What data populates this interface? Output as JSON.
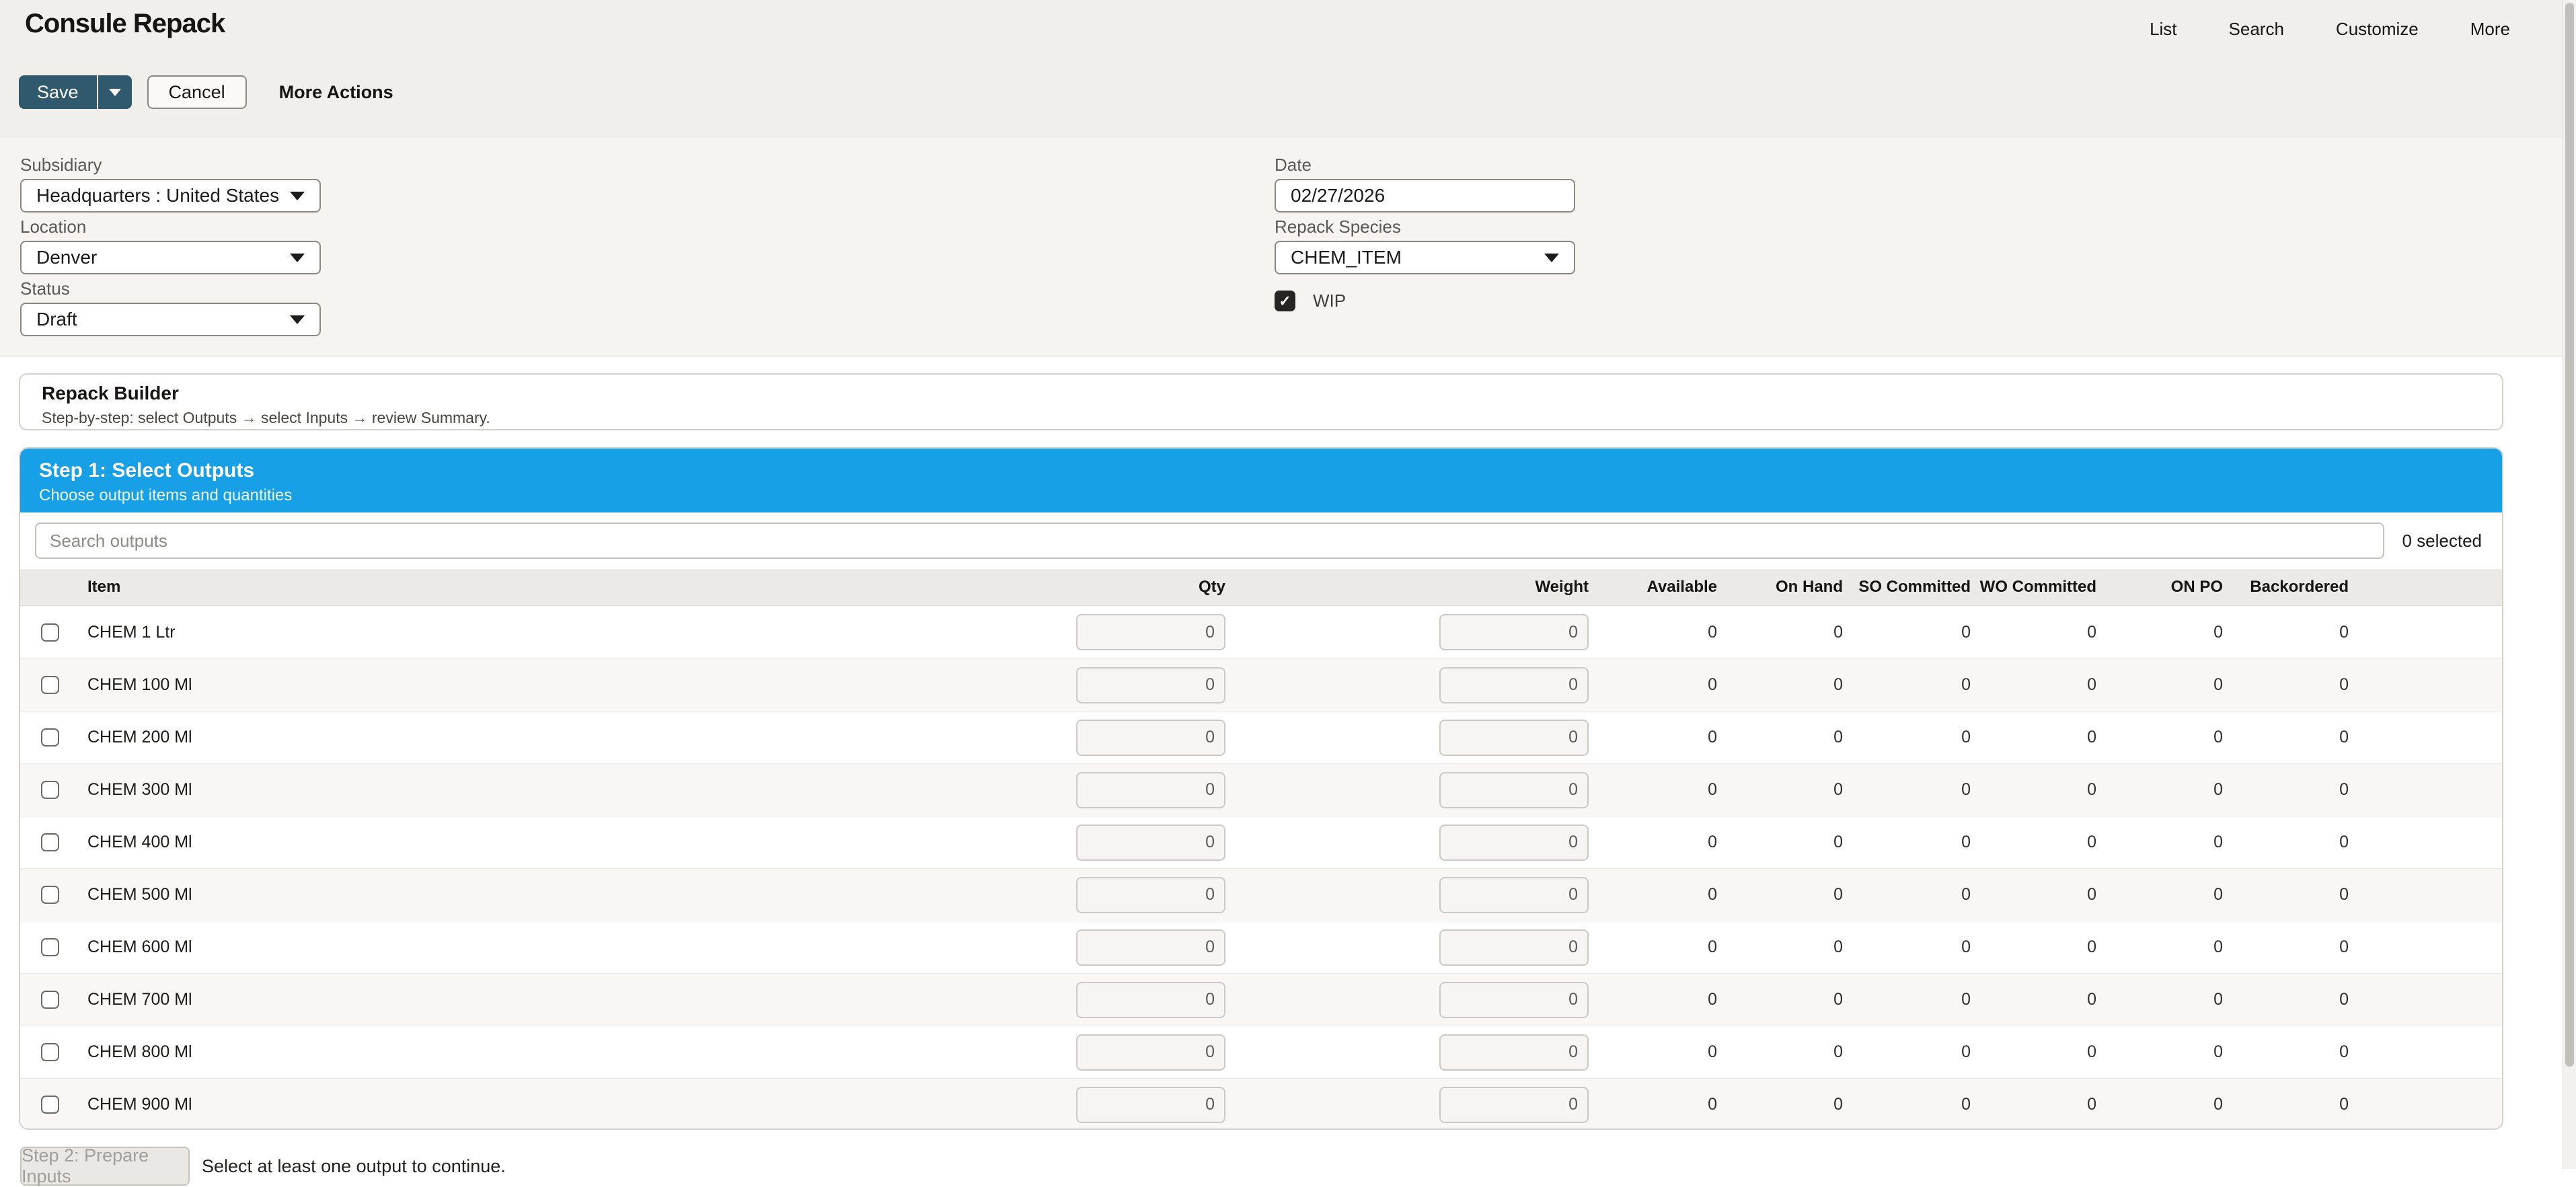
{
  "header": {
    "title": "Consule Repack",
    "nav": [
      {
        "label": "List"
      },
      {
        "label": "Search"
      },
      {
        "label": "Customize"
      },
      {
        "label": "More"
      }
    ]
  },
  "toolbar": {
    "save_label": "Save",
    "cancel_label": "Cancel",
    "more_actions_label": "More Actions"
  },
  "form": {
    "subsidiary": {
      "label": "Subsidiary",
      "value": "Headquarters : United States"
    },
    "location": {
      "label": "Location",
      "value": "Denver"
    },
    "status": {
      "label": "Status",
      "value": "Draft"
    },
    "date": {
      "label": "Date",
      "value": "02/27/2026"
    },
    "repack_species": {
      "label": "Repack Species",
      "value": "CHEM_ITEM"
    },
    "wip": {
      "label": "WIP",
      "checked": true,
      "checkmark": "✓"
    }
  },
  "builder": {
    "title": "Repack Builder",
    "subtitle": "Step-by-step: select Outputs → select Inputs → review Summary."
  },
  "step1": {
    "title": "Step 1: Select Outputs",
    "subtitle": "Choose output items and quantities",
    "search_placeholder": "Search outputs",
    "selected_count": "0 selected",
    "columns": [
      "Item",
      "Qty",
      "Weight",
      "Available",
      "On Hand",
      "SO Committed",
      "WO Committed",
      "ON PO",
      "Backordered"
    ],
    "rows": [
      {
        "item": "CHEM 1 Ltr",
        "qty": "0",
        "weight": "0",
        "available": "0",
        "on_hand": "0",
        "so_committed": "0",
        "wo_committed": "0",
        "on_po": "0",
        "backordered": "0"
      },
      {
        "item": "CHEM 100 Ml",
        "qty": "0",
        "weight": "0",
        "available": "0",
        "on_hand": "0",
        "so_committed": "0",
        "wo_committed": "0",
        "on_po": "0",
        "backordered": "0"
      },
      {
        "item": "CHEM 200 Ml",
        "qty": "0",
        "weight": "0",
        "available": "0",
        "on_hand": "0",
        "so_committed": "0",
        "wo_committed": "0",
        "on_po": "0",
        "backordered": "0"
      },
      {
        "item": "CHEM 300 Ml",
        "qty": "0",
        "weight": "0",
        "available": "0",
        "on_hand": "0",
        "so_committed": "0",
        "wo_committed": "0",
        "on_po": "0",
        "backordered": "0"
      },
      {
        "item": "CHEM 400 Ml",
        "qty": "0",
        "weight": "0",
        "available": "0",
        "on_hand": "0",
        "so_committed": "0",
        "wo_committed": "0",
        "on_po": "0",
        "backordered": "0"
      },
      {
        "item": "CHEM 500 Ml",
        "qty": "0",
        "weight": "0",
        "available": "0",
        "on_hand": "0",
        "so_committed": "0",
        "wo_committed": "0",
        "on_po": "0",
        "backordered": "0"
      },
      {
        "item": "CHEM 600 Ml",
        "qty": "0",
        "weight": "0",
        "available": "0",
        "on_hand": "0",
        "so_committed": "0",
        "wo_committed": "0",
        "on_po": "0",
        "backordered": "0"
      },
      {
        "item": "CHEM 700 Ml",
        "qty": "0",
        "weight": "0",
        "available": "0",
        "on_hand": "0",
        "so_committed": "0",
        "wo_committed": "0",
        "on_po": "0",
        "backordered": "0"
      },
      {
        "item": "CHEM 800 Ml",
        "qty": "0",
        "weight": "0",
        "available": "0",
        "on_hand": "0",
        "so_committed": "0",
        "wo_committed": "0",
        "on_po": "0",
        "backordered": "0"
      },
      {
        "item": "CHEM 900 Ml",
        "qty": "0",
        "weight": "0",
        "available": "0",
        "on_hand": "0",
        "so_committed": "0",
        "wo_committed": "0",
        "on_po": "0",
        "backordered": "0"
      }
    ]
  },
  "footer": {
    "step2_button": "Step 2: Prepare Inputs",
    "hint": "Select at least one output to continue."
  },
  "colors": {
    "accent_blue": "#18a0e6",
    "save_button": "#30596e",
    "topbar_bg": "#f1efec",
    "form_bg": "#f6f4f1",
    "table_header_bg": "#ebeae7"
  }
}
